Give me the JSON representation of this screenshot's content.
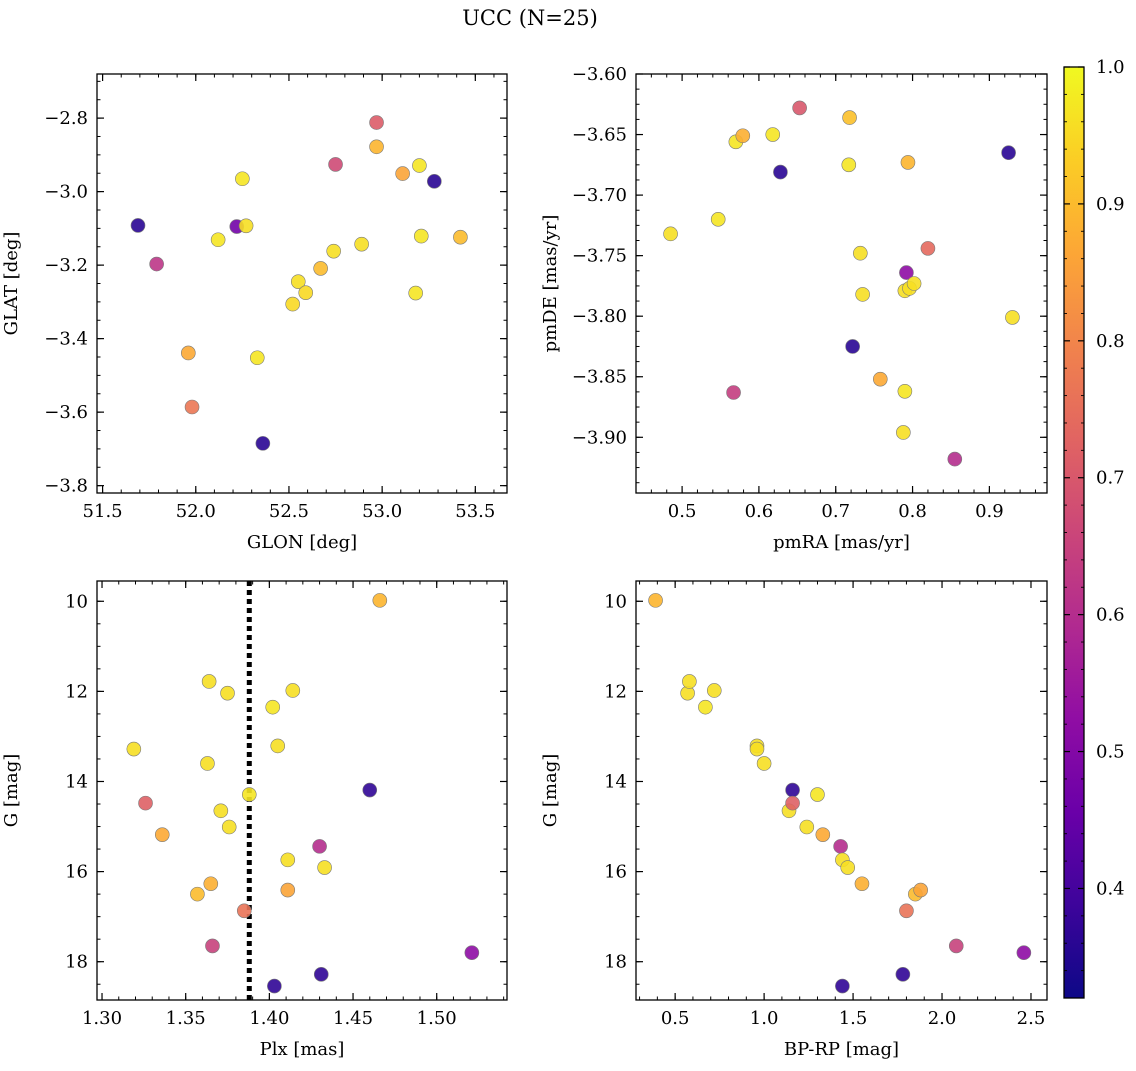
{
  "figure": {
    "title": "UCC (N=25)"
  },
  "colorbar": {
    "colormap": "plasma",
    "range": [
      0.32,
      1.0
    ],
    "ticks": [
      0.4,
      0.5,
      0.6,
      0.7,
      0.8,
      0.9,
      1.0
    ],
    "tick_labels": [
      "0.4",
      "0.5",
      "0.6",
      "0.7",
      "0.8",
      "0.9",
      "1.0"
    ]
  },
  "chart_data": [
    {
      "type": "scatter",
      "id": "glon-glat",
      "xlabel": "GLON [deg]",
      "ylabel": "GLAT [deg]",
      "xlim": [
        51.47,
        53.67
      ],
      "ylim": [
        -3.82,
        -2.68
      ],
      "xticks": [
        51.5,
        52.0,
        52.5,
        53.0,
        53.5
      ],
      "xtick_labels": [
        "51.5",
        "52.0",
        "52.5",
        "53.0",
        "53.5"
      ],
      "yticks": [
        -3.8,
        -3.6,
        -3.4,
        -3.2,
        -3.0,
        -2.8
      ],
      "ytick_labels": [
        "−3.8",
        "−3.6",
        "−3.4",
        "−3.2",
        "−3.0",
        "−2.8"
      ],
      "invert_y": false,
      "points": [
        {
          "x": 51.69,
          "y": -3.092,
          "c": 0.36
        },
        {
          "x": 51.79,
          "y": -3.197,
          "c": 0.62
        },
        {
          "x": 51.96,
          "y": -3.439,
          "c": 0.87
        },
        {
          "x": 51.98,
          "y": -3.586,
          "c": 0.77
        },
        {
          "x": 52.12,
          "y": -3.131,
          "c": 0.97
        },
        {
          "x": 52.22,
          "y": -3.095,
          "c": 0.47
        },
        {
          "x": 52.25,
          "y": -2.965,
          "c": 0.97
        },
        {
          "x": 52.27,
          "y": -3.093,
          "c": 0.96
        },
        {
          "x": 52.33,
          "y": -3.452,
          "c": 0.97
        },
        {
          "x": 52.36,
          "y": -3.685,
          "c": 0.36
        },
        {
          "x": 52.52,
          "y": -3.306,
          "c": 0.95
        },
        {
          "x": 52.55,
          "y": -3.245,
          "c": 0.96
        },
        {
          "x": 52.59,
          "y": -3.275,
          "c": 0.95
        },
        {
          "x": 52.67,
          "y": -3.209,
          "c": 0.9
        },
        {
          "x": 52.74,
          "y": -3.162,
          "c": 0.96
        },
        {
          "x": 52.75,
          "y": -2.926,
          "c": 0.67
        },
        {
          "x": 52.89,
          "y": -3.143,
          "c": 0.96
        },
        {
          "x": 52.97,
          "y": -2.812,
          "c": 0.71
        },
        {
          "x": 52.97,
          "y": -2.878,
          "c": 0.89
        },
        {
          "x": 53.11,
          "y": -2.951,
          "c": 0.86
        },
        {
          "x": 53.18,
          "y": -3.276,
          "c": 0.97
        },
        {
          "x": 53.2,
          "y": -2.929,
          "c": 0.97
        },
        {
          "x": 53.21,
          "y": -3.121,
          "c": 0.97
        },
        {
          "x": 53.28,
          "y": -2.972,
          "c": 0.36
        },
        {
          "x": 53.42,
          "y": -3.124,
          "c": 0.9
        }
      ]
    },
    {
      "type": "scatter",
      "id": "pmra-pmde",
      "xlabel": "pmRA [mas/yr]",
      "ylabel": "pmDE [mas/yr]",
      "xlim": [
        0.44,
        0.975
      ],
      "ylim": [
        -3.946,
        -3.6
      ],
      "xticks": [
        0.5,
        0.6,
        0.7,
        0.8,
        0.9
      ],
      "xtick_labels": [
        "0.5",
        "0.6",
        "0.7",
        "0.8",
        "0.9"
      ],
      "yticks": [
        -3.9,
        -3.85,
        -3.8,
        -3.75,
        -3.7,
        -3.65,
        -3.6
      ],
      "ytick_labels": [
        "−3.90",
        "−3.85",
        "−3.80",
        "−3.75",
        "−3.70",
        "−3.65",
        "−3.60"
      ],
      "invert_y": false,
      "points": [
        {
          "x": 0.485,
          "y": -3.732,
          "c": 0.96
        },
        {
          "x": 0.547,
          "y": -3.72,
          "c": 0.97
        },
        {
          "x": 0.567,
          "y": -3.863,
          "c": 0.64
        },
        {
          "x": 0.57,
          "y": -3.656,
          "c": 0.97
        },
        {
          "x": 0.579,
          "y": -3.651,
          "c": 0.88
        },
        {
          "x": 0.618,
          "y": -3.65,
          "c": 0.97
        },
        {
          "x": 0.628,
          "y": -3.681,
          "c": 0.36
        },
        {
          "x": 0.653,
          "y": -3.628,
          "c": 0.7
        },
        {
          "x": 0.717,
          "y": -3.675,
          "c": 0.97
        },
        {
          "x": 0.718,
          "y": -3.636,
          "c": 0.91
        },
        {
          "x": 0.722,
          "y": -3.825,
          "c": 0.36
        },
        {
          "x": 0.732,
          "y": -3.748,
          "c": 0.96
        },
        {
          "x": 0.735,
          "y": -3.782,
          "c": 0.96
        },
        {
          "x": 0.758,
          "y": -3.852,
          "c": 0.87
        },
        {
          "x": 0.788,
          "y": -3.896,
          "c": 0.96
        },
        {
          "x": 0.79,
          "y": -3.862,
          "c": 0.97
        },
        {
          "x": 0.79,
          "y": -3.779,
          "c": 0.96
        },
        {
          "x": 0.792,
          "y": -3.764,
          "c": 0.52
        },
        {
          "x": 0.794,
          "y": -3.673,
          "c": 0.89
        },
        {
          "x": 0.796,
          "y": -3.777,
          "c": 0.96
        },
        {
          "x": 0.802,
          "y": -3.773,
          "c": 0.96
        },
        {
          "x": 0.82,
          "y": -3.744,
          "c": 0.74
        },
        {
          "x": 0.855,
          "y": -3.918,
          "c": 0.6
        },
        {
          "x": 0.925,
          "y": -3.665,
          "c": 0.36
        },
        {
          "x": 0.93,
          "y": -3.801,
          "c": 0.96
        }
      ]
    },
    {
      "type": "scatter",
      "id": "plx-g",
      "xlabel": "Plx [mas]",
      "ylabel": "G [mag]",
      "xlim": [
        1.297,
        1.542
      ],
      "ylim": [
        9.55,
        18.85
      ],
      "xticks": [
        1.3,
        1.35,
        1.4,
        1.45,
        1.5
      ],
      "xtick_labels": [
        "1.30",
        "1.35",
        "1.40",
        "1.45",
        "1.50"
      ],
      "yticks": [
        10,
        12,
        14,
        16,
        18
      ],
      "ytick_labels": [
        "10",
        "12",
        "14",
        "16",
        "18"
      ],
      "invert_y": true,
      "vline": {
        "x": 1.388,
        "style": "dotted",
        "color": "#000000"
      },
      "points": [
        {
          "x": 1.319,
          "y": 13.28,
          "c": 0.96
        },
        {
          "x": 1.326,
          "y": 14.48,
          "c": 0.72
        },
        {
          "x": 1.336,
          "y": 15.18,
          "c": 0.87
        },
        {
          "x": 1.357,
          "y": 16.5,
          "c": 0.9
        },
        {
          "x": 1.363,
          "y": 13.6,
          "c": 0.96
        },
        {
          "x": 1.364,
          "y": 11.78,
          "c": 0.96
        },
        {
          "x": 1.365,
          "y": 16.27,
          "c": 0.88
        },
        {
          "x": 1.366,
          "y": 17.65,
          "c": 0.65
        },
        {
          "x": 1.371,
          "y": 14.65,
          "c": 0.96
        },
        {
          "x": 1.375,
          "y": 12.04,
          "c": 0.96
        },
        {
          "x": 1.376,
          "y": 15.01,
          "c": 0.96
        },
        {
          "x": 1.385,
          "y": 16.87,
          "c": 0.76
        },
        {
          "x": 1.388,
          "y": 14.29,
          "c": 0.97
        },
        {
          "x": 1.402,
          "y": 12.35,
          "c": 0.97
        },
        {
          "x": 1.403,
          "y": 18.54,
          "c": 0.37
        },
        {
          "x": 1.405,
          "y": 13.21,
          "c": 0.96
        },
        {
          "x": 1.411,
          "y": 15.74,
          "c": 0.96
        },
        {
          "x": 1.411,
          "y": 16.41,
          "c": 0.86
        },
        {
          "x": 1.414,
          "y": 11.98,
          "c": 0.96
        },
        {
          "x": 1.43,
          "y": 15.44,
          "c": 0.6
        },
        {
          "x": 1.431,
          "y": 18.28,
          "c": 0.37
        },
        {
          "x": 1.433,
          "y": 15.91,
          "c": 0.96
        },
        {
          "x": 1.46,
          "y": 14.19,
          "c": 0.37
        },
        {
          "x": 1.466,
          "y": 9.98,
          "c": 0.89
        },
        {
          "x": 1.521,
          "y": 17.8,
          "c": 0.52
        }
      ]
    },
    {
      "type": "scatter",
      "id": "bprp-g",
      "xlabel": "BP-RP [mag]",
      "ylabel": "G [mag]",
      "xlim": [
        0.28,
        2.59
      ],
      "ylim": [
        9.55,
        18.85
      ],
      "xticks": [
        0.5,
        1.0,
        1.5,
        2.0,
        2.5
      ],
      "xtick_labels": [
        "0.5",
        "1.0",
        "1.5",
        "2.0",
        "2.5"
      ],
      "yticks": [
        10,
        12,
        14,
        16,
        18
      ],
      "ytick_labels": [
        "10",
        "12",
        "14",
        "16",
        "18"
      ],
      "invert_y": true,
      "points": [
        {
          "x": 0.39,
          "y": 9.98,
          "c": 0.89
        },
        {
          "x": 0.57,
          "y": 12.04,
          "c": 0.96
        },
        {
          "x": 0.58,
          "y": 11.78,
          "c": 0.96
        },
        {
          "x": 0.67,
          "y": 12.35,
          "c": 0.97
        },
        {
          "x": 0.72,
          "y": 11.98,
          "c": 0.96
        },
        {
          "x": 0.96,
          "y": 13.21,
          "c": 0.96
        },
        {
          "x": 0.96,
          "y": 13.28,
          "c": 0.96
        },
        {
          "x": 1.0,
          "y": 13.6,
          "c": 0.96
        },
        {
          "x": 1.14,
          "y": 14.65,
          "c": 0.96
        },
        {
          "x": 1.16,
          "y": 14.19,
          "c": 0.37
        },
        {
          "x": 1.16,
          "y": 14.48,
          "c": 0.72
        },
        {
          "x": 1.24,
          "y": 15.01,
          "c": 0.96
        },
        {
          "x": 1.3,
          "y": 14.29,
          "c": 0.97
        },
        {
          "x": 1.33,
          "y": 15.18,
          "c": 0.87
        },
        {
          "x": 1.43,
          "y": 15.44,
          "c": 0.6
        },
        {
          "x": 1.44,
          "y": 15.74,
          "c": 0.96
        },
        {
          "x": 1.44,
          "y": 18.54,
          "c": 0.37
        },
        {
          "x": 1.47,
          "y": 15.91,
          "c": 0.96
        },
        {
          "x": 1.55,
          "y": 16.27,
          "c": 0.88
        },
        {
          "x": 1.78,
          "y": 18.28,
          "c": 0.37
        },
        {
          "x": 1.8,
          "y": 16.87,
          "c": 0.76
        },
        {
          "x": 1.85,
          "y": 16.5,
          "c": 0.9
        },
        {
          "x": 1.88,
          "y": 16.41,
          "c": 0.86
        },
        {
          "x": 2.08,
          "y": 17.65,
          "c": 0.65
        },
        {
          "x": 2.46,
          "y": 17.8,
          "c": 0.52
        }
      ]
    }
  ]
}
